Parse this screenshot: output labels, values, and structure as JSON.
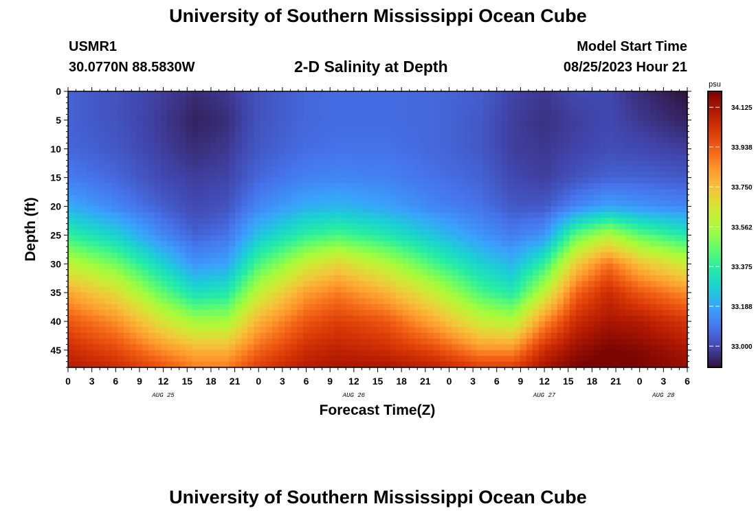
{
  "page": {
    "title_top": "University of Southern Mississippi Ocean Cube",
    "title_bottom": "University of Southern Mississippi Ocean Cube",
    "station_id": "USMR1",
    "coordinates": "30.0770N  88.5830W",
    "subtitle": "2-D Salinity at Depth",
    "model_start_label": "Model Start Time",
    "model_start_value": "08/25/2023 Hour 21"
  },
  "chart_data": {
    "type": "heatmap",
    "title": "2-D Salinity at Depth",
    "xlabel": "Forecast Time(Z)",
    "ylabel": "Depth (ft)",
    "x_tick_labels": [
      "0",
      "3",
      "6",
      "9",
      "12",
      "15",
      "18",
      "21",
      "0",
      "3",
      "6",
      "9",
      "12",
      "15",
      "18",
      "21",
      "0",
      "3",
      "6",
      "9",
      "12",
      "15",
      "18",
      "21",
      "0",
      "3",
      "6"
    ],
    "x_hours": [
      0,
      3,
      6,
      9,
      12,
      15,
      18,
      21,
      24,
      27,
      30,
      33,
      36,
      39,
      42,
      45,
      48,
      51,
      54,
      57,
      60,
      63,
      66,
      69,
      72,
      75,
      78
    ],
    "x_date_labels": [
      {
        "text": "AUG 25",
        "hour": 12
      },
      {
        "text": "AUG 26",
        "hour": 36
      },
      {
        "text": "AUG 27",
        "hour": 60
      },
      {
        "text": "AUG 28",
        "hour": 75
      }
    ],
    "xlim": [
      0,
      78
    ],
    "y_ticks": [
      0,
      5,
      10,
      15,
      20,
      25,
      30,
      35,
      40,
      45
    ],
    "y_tick_labels": [
      "0",
      "5",
      "10",
      "15",
      "20",
      "25",
      "30",
      "35",
      "40",
      "45"
    ],
    "ylim": [
      0,
      48
    ],
    "y_inverted": true,
    "colorbar": {
      "unit": "psu",
      "range": [
        32.9,
        34.2
      ],
      "tick_values": [
        33.0,
        33.188,
        33.375,
        33.562,
        33.75,
        33.938,
        34.125
      ],
      "tick_labels": [
        "33.000",
        "33.188",
        "33.375",
        "33.562",
        "33.750",
        "33.938",
        "34.125"
      ],
      "colormap": [
        "#30123b",
        "#4145ab",
        "#4675ed",
        "#39a2fc",
        "#1bcfd4",
        "#24eca6",
        "#61fc6c",
        "#a4fc3b",
        "#d1e834",
        "#f3c63a",
        "#fe9b2d",
        "#f36315",
        "#d93806",
        "#b11901",
        "#7a0402"
      ]
    },
    "field": {
      "note": "Salinity (psu) by forecast hour and depth",
      "x_hours": [
        0,
        6,
        12,
        16,
        20,
        24,
        30,
        34,
        40,
        46,
        52,
        56,
        60,
        64,
        68,
        72,
        78
      ],
      "depths": [
        0,
        5,
        10,
        15,
        20,
        25,
        30,
        35,
        40,
        45,
        48
      ],
      "values": [
        [
          33.05,
          33.02,
          32.98,
          32.95,
          32.97,
          33.02,
          33.06,
          33.07,
          33.07,
          33.06,
          33.04,
          32.99,
          32.97,
          33.0,
          33.0,
          32.95,
          32.9
        ],
        [
          33.05,
          33.02,
          32.97,
          32.93,
          32.95,
          33.02,
          33.06,
          33.07,
          33.07,
          33.06,
          33.03,
          32.98,
          32.96,
          32.98,
          33.0,
          32.97,
          32.93
        ],
        [
          33.06,
          33.03,
          32.98,
          32.95,
          32.97,
          33.03,
          33.07,
          33.08,
          33.08,
          33.06,
          33.03,
          32.98,
          32.97,
          32.99,
          33.01,
          33.0,
          32.98
        ],
        [
          33.1,
          33.06,
          33.0,
          32.98,
          32.99,
          33.06,
          33.11,
          33.12,
          33.11,
          33.08,
          33.05,
          33.0,
          32.98,
          33.02,
          33.05,
          33.05,
          33.03
        ],
        [
          33.2,
          33.12,
          33.04,
          33.0,
          33.02,
          33.12,
          33.2,
          33.22,
          33.18,
          33.12,
          33.08,
          33.03,
          33.03,
          33.12,
          33.18,
          33.15,
          33.12
        ],
        [
          33.38,
          33.28,
          33.12,
          33.05,
          33.08,
          33.25,
          33.38,
          33.42,
          33.35,
          33.25,
          33.15,
          33.1,
          33.15,
          33.45,
          33.58,
          33.45,
          33.35
        ],
        [
          33.6,
          33.48,
          33.28,
          33.15,
          33.18,
          33.42,
          33.62,
          33.7,
          33.58,
          33.42,
          33.28,
          33.22,
          33.38,
          33.72,
          33.9,
          33.75,
          33.62
        ],
        [
          33.8,
          33.68,
          33.45,
          33.32,
          33.35,
          33.6,
          33.82,
          33.88,
          33.78,
          33.62,
          33.42,
          33.35,
          33.6,
          33.92,
          34.05,
          33.95,
          33.85
        ],
        [
          33.95,
          33.85,
          33.65,
          33.55,
          33.55,
          33.78,
          33.95,
          34.0,
          33.95,
          33.8,
          33.62,
          33.58,
          33.85,
          34.05,
          34.12,
          34.1,
          34.02
        ],
        [
          34.05,
          33.98,
          33.85,
          33.78,
          33.78,
          33.92,
          34.05,
          34.08,
          34.05,
          33.98,
          33.85,
          33.85,
          34.05,
          34.15,
          34.2,
          34.18,
          34.12
        ],
        [
          34.1,
          34.05,
          33.95,
          33.88,
          33.88,
          34.0,
          34.1,
          34.12,
          34.12,
          34.08,
          34.0,
          34.0,
          34.12,
          34.2,
          34.22,
          34.2,
          34.15
        ]
      ]
    }
  }
}
